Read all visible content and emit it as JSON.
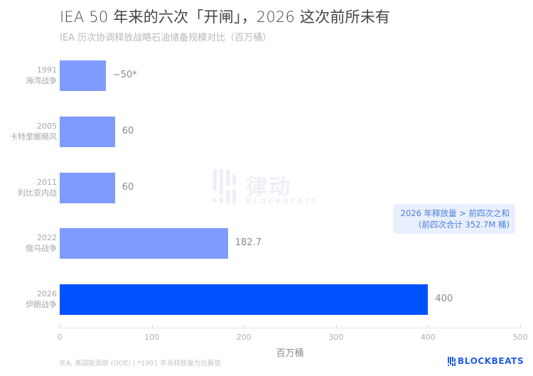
{
  "header": {
    "title": "IEA 50 年来的六次「开闸」，2026 这次前所未有",
    "subtitle": "IEA 历次协调释放战略石油储备规模对比（百万桶）"
  },
  "colors": {
    "bar_default": "#7f9bff",
    "bar_highlight": "#0052ff",
    "callout_bg": "#e9effd",
    "callout_text": "#4a7fe0",
    "brand": "#1f5cf0"
  },
  "chart_data": {
    "type": "bar",
    "orientation": "horizontal",
    "title": "IEA 50 年来的六次「开闸」，2026 这次前所未有",
    "subtitle": "IEA 历次协调释放战略石油储备规模对比（百万桶）",
    "categories": [
      "1991 海湾战争",
      "2005 卡特里娜飓风",
      "2011 利比亚内战",
      "2022 俄乌战争",
      "2026 伊朗战争"
    ],
    "years": [
      "1991",
      "2005",
      "2011",
      "2022",
      "2026"
    ],
    "events": [
      "海湾战争",
      "卡特里娜飓风",
      "利比亚内战",
      "俄乌战争",
      "伊朗战争"
    ],
    "values": [
      50,
      60,
      60,
      182.7,
      400
    ],
    "value_labels": [
      "~50*",
      "60",
      "60",
      "182.7",
      "400"
    ],
    "highlight_index": 4,
    "xlabel": "百万桶",
    "ylabel": "",
    "xlim": [
      0,
      500
    ],
    "xticks": [
      0,
      100,
      200,
      300,
      400,
      500
    ],
    "grid": false,
    "legend": null,
    "annotation": {
      "line1": "2026 年释放量 > 前四次之和",
      "line2": "(前四次合计 352.7M 桶)"
    }
  },
  "footer": {
    "source": "IEA, 美国能源部 (DOE)  |  *1991 年总释放量为估算值",
    "brand": "BLOCKBEATS"
  },
  "watermark": {
    "text": "律动",
    "sub": "BLOCKBEATS"
  }
}
